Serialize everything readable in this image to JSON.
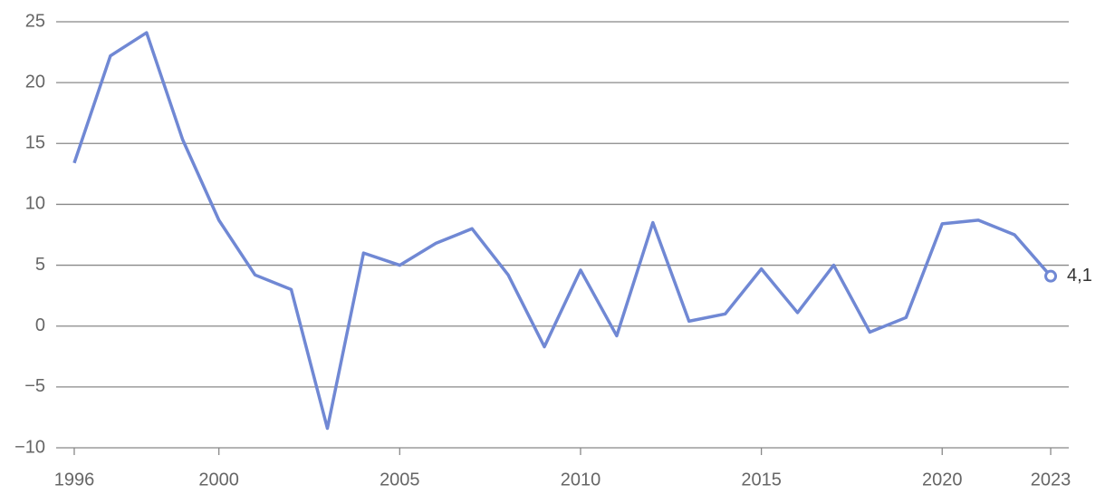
{
  "chart_data": {
    "type": "line",
    "x": [
      1996,
      1997,
      1998,
      1999,
      2000,
      2001,
      2002,
      2003,
      2004,
      2005,
      2006,
      2007,
      2008,
      2009,
      2010,
      2011,
      2012,
      2013,
      2014,
      2015,
      2016,
      2017,
      2018,
      2019,
      2020,
      2021,
      2022,
      2023
    ],
    "values": [
      13.4,
      22.2,
      24.1,
      15.3,
      8.7,
      4.2,
      3.0,
      -8.4,
      6.0,
      5.0,
      6.8,
      8.0,
      4.2,
      -1.7,
      4.6,
      -0.8,
      8.5,
      0.4,
      1.0,
      4.7,
      1.1,
      5.0,
      -0.5,
      0.7,
      8.4,
      8.7,
      7.5,
      4.1
    ],
    "value_labels": [
      null,
      null,
      null,
      null,
      null,
      null,
      null,
      null,
      null,
      null,
      null,
      null,
      null,
      null,
      null,
      null,
      null,
      null,
      null,
      null,
      null,
      null,
      null,
      null,
      null,
      null,
      null,
      "4,1"
    ],
    "color": "#7088d4",
    "xlim": [
      1995.5,
      2023.5
    ],
    "xticks": [
      1996,
      2000,
      2005,
      2010,
      2015,
      2020,
      2023
    ],
    "ylim": [
      -10,
      25
    ],
    "yticks": [
      {
        "value": -10,
        "label": "−10"
      },
      {
        "value": -5,
        "label": "−5"
      },
      0,
      5,
      10,
      15,
      20,
      25
    ],
    "grid": true
  }
}
